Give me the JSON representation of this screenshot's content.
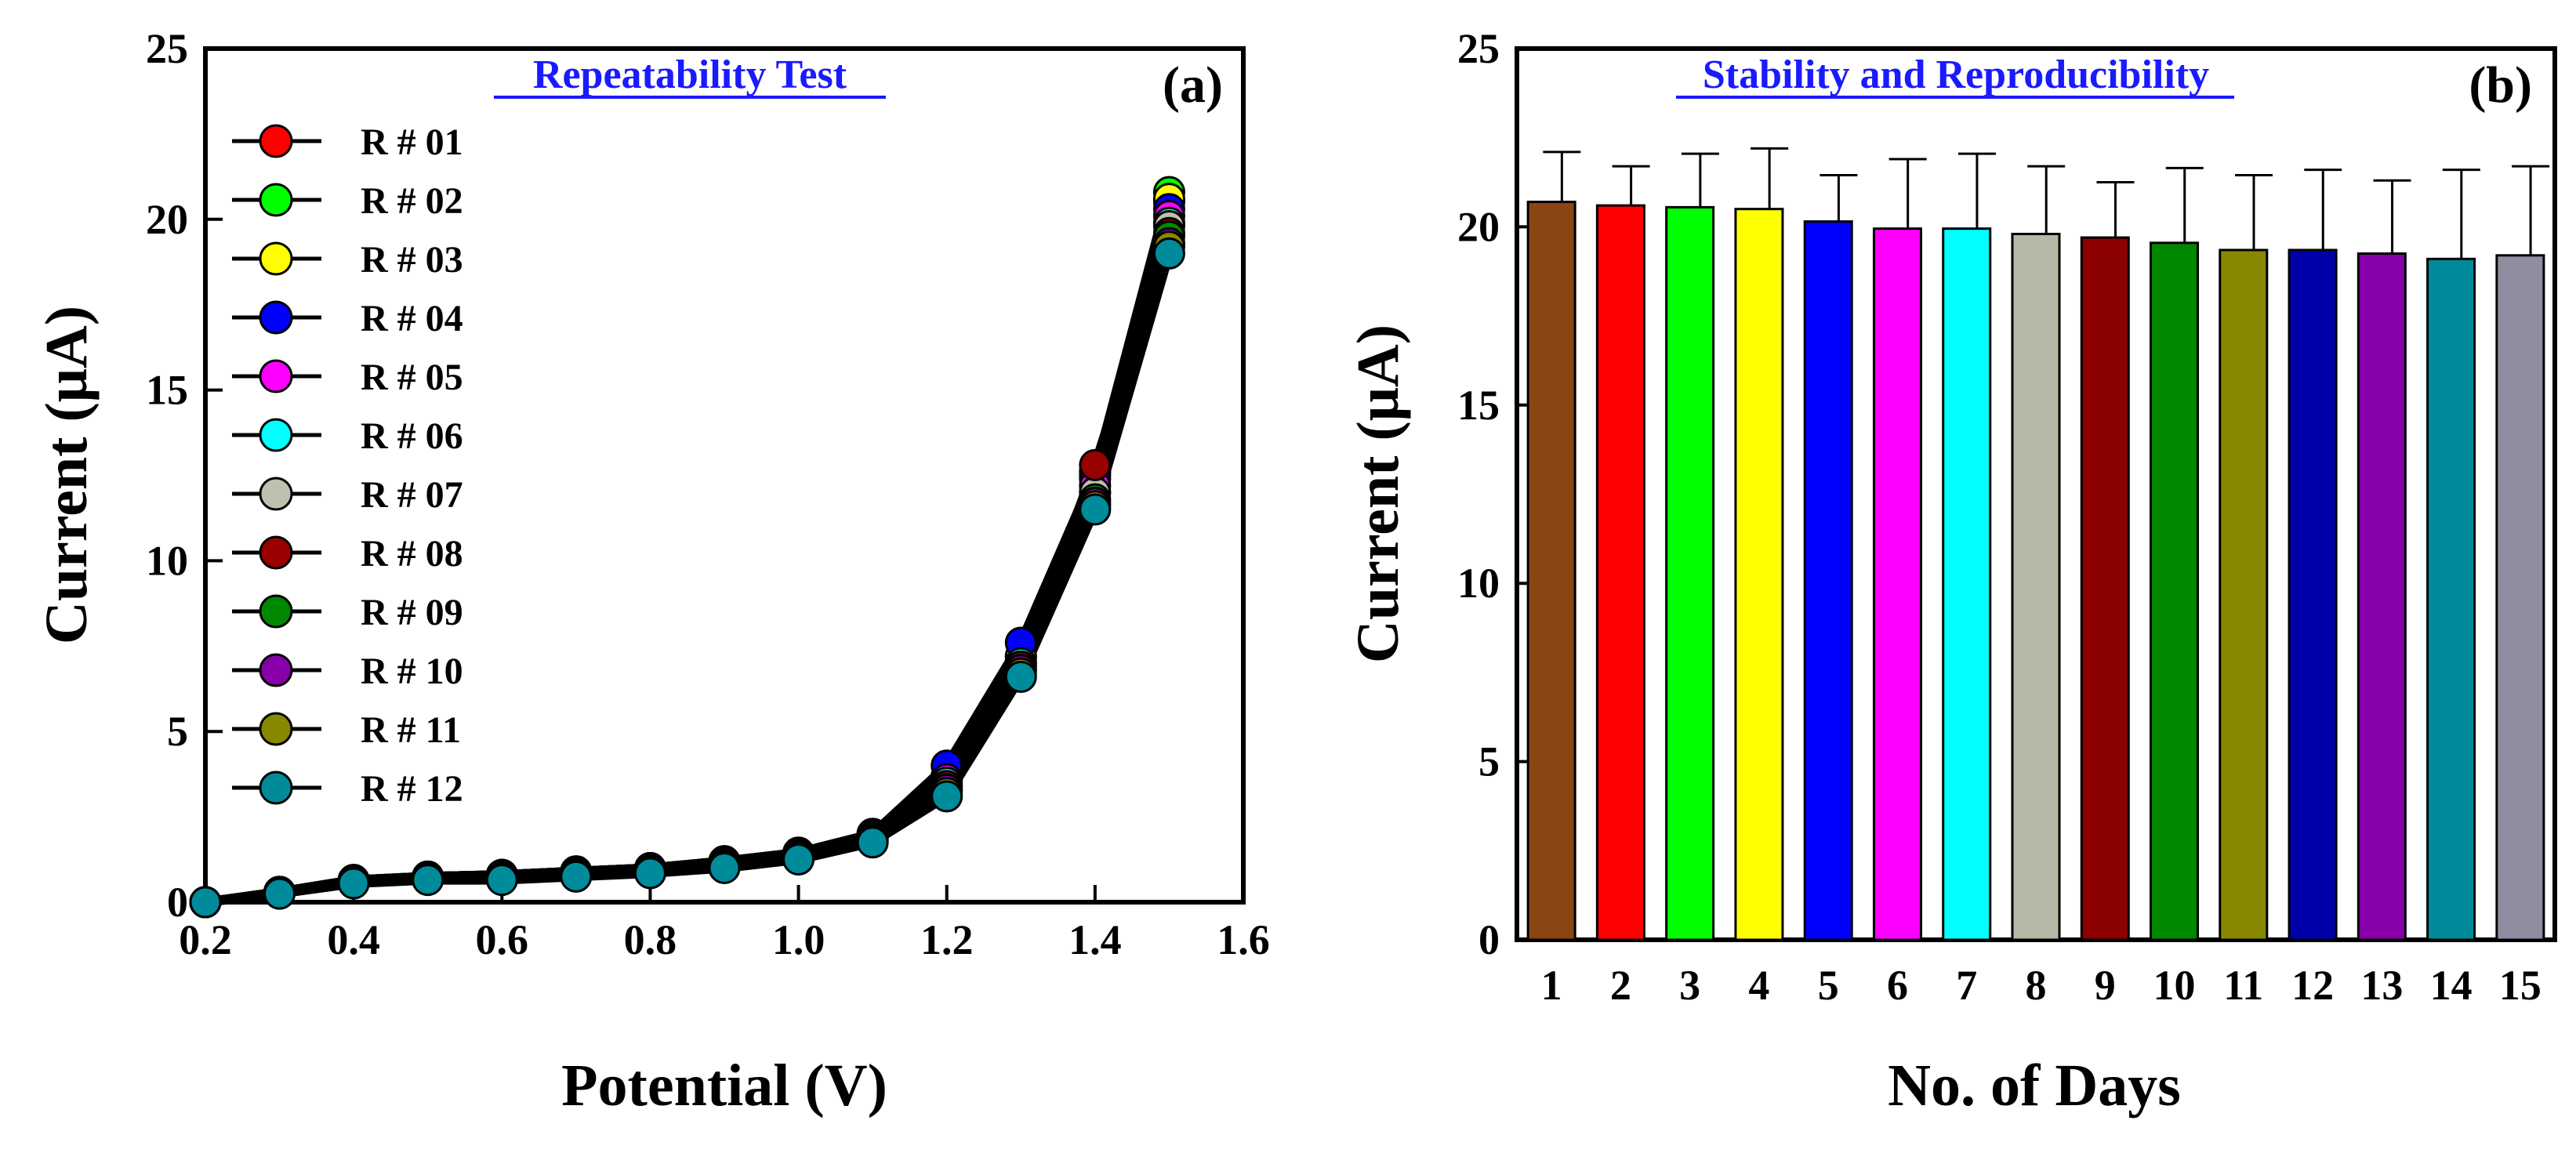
{
  "chart_data": [
    {
      "panel": "a",
      "type": "line",
      "title": "Repeatability Test",
      "panel_label": "(a)",
      "xlabel": "Potential (V)",
      "ylabel": "Current (μA)",
      "xlim": [
        0.2,
        1.6
      ],
      "ylim": [
        0,
        25
      ],
      "xticks": [
        "0.2",
        "0.4",
        "0.6",
        "0.8",
        "1.0",
        "1.2",
        "1.4",
        "1.6"
      ],
      "yticks": [
        "0",
        "5",
        "10",
        "15",
        "20",
        "25"
      ],
      "x": [
        0.2,
        0.3,
        0.4,
        0.5,
        0.6,
        0.7,
        0.8,
        0.9,
        1.0,
        1.1,
        1.2,
        1.3,
        1.4,
        1.5
      ],
      "legend_position": "upper-left",
      "series": [
        {
          "name": "R # 01",
          "color": "#ff0000",
          "values": [
            0.0,
            0.3,
            0.65,
            0.75,
            0.8,
            0.9,
            1.0,
            1.2,
            1.45,
            2.0,
            3.7,
            7.2,
            12.5,
            20.5
          ]
        },
        {
          "name": "R # 02",
          "color": "#00ff00",
          "values": [
            0.0,
            0.3,
            0.65,
            0.75,
            0.8,
            0.9,
            1.0,
            1.2,
            1.45,
            2.0,
            3.6,
            7.1,
            12.6,
            20.8
          ]
        },
        {
          "name": "R # 03",
          "color": "#ffff00",
          "values": [
            0.0,
            0.3,
            0.6,
            0.75,
            0.8,
            0.9,
            1.0,
            1.2,
            1.4,
            2.0,
            3.6,
            7.2,
            12.4,
            20.6
          ]
        },
        {
          "name": "R # 04",
          "color": "#0000ff",
          "values": [
            0.0,
            0.3,
            0.65,
            0.75,
            0.8,
            0.9,
            1.0,
            1.2,
            1.45,
            2.0,
            4.0,
            7.6,
            12.6,
            20.3
          ]
        },
        {
          "name": "R # 05",
          "color": "#ff00ff",
          "values": [
            0.0,
            0.3,
            0.6,
            0.7,
            0.75,
            0.85,
            0.95,
            1.15,
            1.4,
            1.95,
            3.6,
            7.0,
            12.2,
            20.1
          ]
        },
        {
          "name": "R # 06",
          "color": "#00ffff",
          "values": [
            0.0,
            0.3,
            0.6,
            0.7,
            0.75,
            0.85,
            0.95,
            1.15,
            1.4,
            1.95,
            3.5,
            7.0,
            12.0,
            19.9
          ]
        },
        {
          "name": "R # 07",
          "color": "#c0c0b0",
          "values": [
            0.0,
            0.3,
            0.6,
            0.7,
            0.75,
            0.85,
            0.95,
            1.1,
            1.35,
            1.9,
            3.4,
            6.9,
            12.0,
            19.8
          ]
        },
        {
          "name": "R # 08",
          "color": "#990000",
          "values": [
            0.0,
            0.3,
            0.6,
            0.7,
            0.75,
            0.85,
            0.95,
            1.1,
            1.35,
            1.9,
            3.4,
            6.9,
            12.8,
            19.6
          ]
        },
        {
          "name": "R # 09",
          "color": "#008800",
          "values": [
            0.0,
            0.3,
            0.6,
            0.7,
            0.75,
            0.85,
            0.95,
            1.1,
            1.35,
            1.9,
            3.3,
            6.8,
            11.8,
            19.5
          ]
        },
        {
          "name": "R # 10",
          "color": "#8800aa",
          "values": [
            0.0,
            0.3,
            0.6,
            0.7,
            0.75,
            0.85,
            0.95,
            1.1,
            1.3,
            1.85,
            3.3,
            6.8,
            11.7,
            19.3
          ]
        },
        {
          "name": "R # 11",
          "color": "#888800",
          "values": [
            0.0,
            0.3,
            0.6,
            0.7,
            0.7,
            0.8,
            0.9,
            1.05,
            1.3,
            1.8,
            3.2,
            6.7,
            11.6,
            19.2
          ]
        },
        {
          "name": "R # 12",
          "color": "#008b9b",
          "values": [
            0.0,
            0.25,
            0.55,
            0.65,
            0.65,
            0.75,
            0.85,
            1.0,
            1.25,
            1.75,
            3.1,
            6.6,
            11.5,
            19.0
          ]
        }
      ]
    },
    {
      "panel": "b",
      "type": "bar",
      "title": "Stability and Reproducibility",
      "panel_label": "(b)",
      "xlabel": "No. of Days",
      "ylabel": "Current (μA)",
      "ylim": [
        0,
        25
      ],
      "yticks": [
        "0",
        "5",
        "10",
        "15",
        "20",
        "25"
      ],
      "categories": [
        "1",
        "2",
        "3",
        "4",
        "5",
        "6",
        "7",
        "8",
        "9",
        "10",
        "11",
        "12",
        "13",
        "14",
        "15"
      ],
      "values": [
        20.7,
        20.6,
        20.55,
        20.5,
        20.15,
        19.95,
        19.95,
        19.8,
        19.7,
        19.55,
        19.35,
        19.35,
        19.25,
        19.1,
        19.2
      ],
      "error": [
        1.4,
        1.1,
        1.5,
        1.7,
        1.3,
        1.95,
        2.1,
        1.9,
        1.55,
        2.1,
        2.1,
        2.25,
        2.05,
        2.5,
        2.5
      ],
      "colors": [
        "#8b4513",
        "#ff0000",
        "#00ff00",
        "#ffff00",
        "#0000ff",
        "#ff00ff",
        "#00ffff",
        "#b8b8a8",
        "#8b0000",
        "#008800",
        "#888800",
        "#0000aa",
        "#8800aa",
        "#008b9b",
        "#8e8ea0"
      ]
    }
  ]
}
